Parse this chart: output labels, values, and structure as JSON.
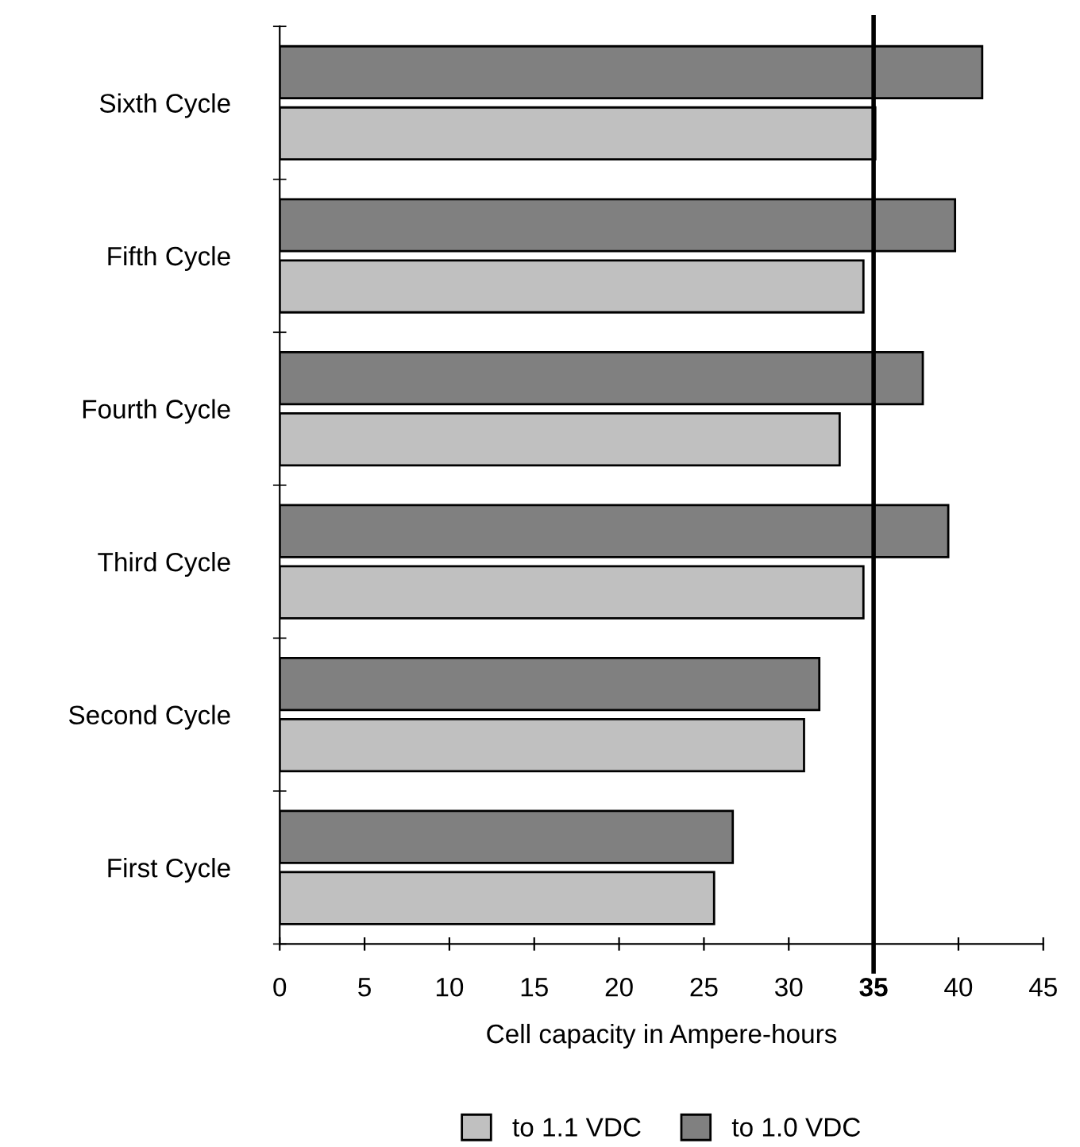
{
  "chart_data": {
    "type": "bar",
    "orientation": "horizontal",
    "xlabel": "Cell capacity in Ampere-hours",
    "categories": [
      "Sixth Cycle",
      "Fifth Cycle",
      "Fourth Cycle",
      "Third Cycle",
      "Second Cycle",
      "First Cycle"
    ],
    "series": [
      {
        "name": "to 1.1 VDC",
        "color": "#c0c0c0",
        "values": [
          35.1,
          34.4,
          33.0,
          34.4,
          30.9,
          25.6
        ]
      },
      {
        "name": "to 1.0 VDC",
        "color": "#808080",
        "values": [
          41.4,
          39.8,
          37.9,
          39.4,
          31.8,
          26.7
        ]
      }
    ],
    "xlim": [
      0,
      45
    ],
    "xticks": [
      0,
      5,
      10,
      15,
      20,
      25,
      30,
      35,
      40,
      45
    ],
    "ref_lines": [
      {
        "axis": "x",
        "value": 35,
        "color": "#000000"
      }
    ],
    "grid": false,
    "legend": "bottom"
  }
}
